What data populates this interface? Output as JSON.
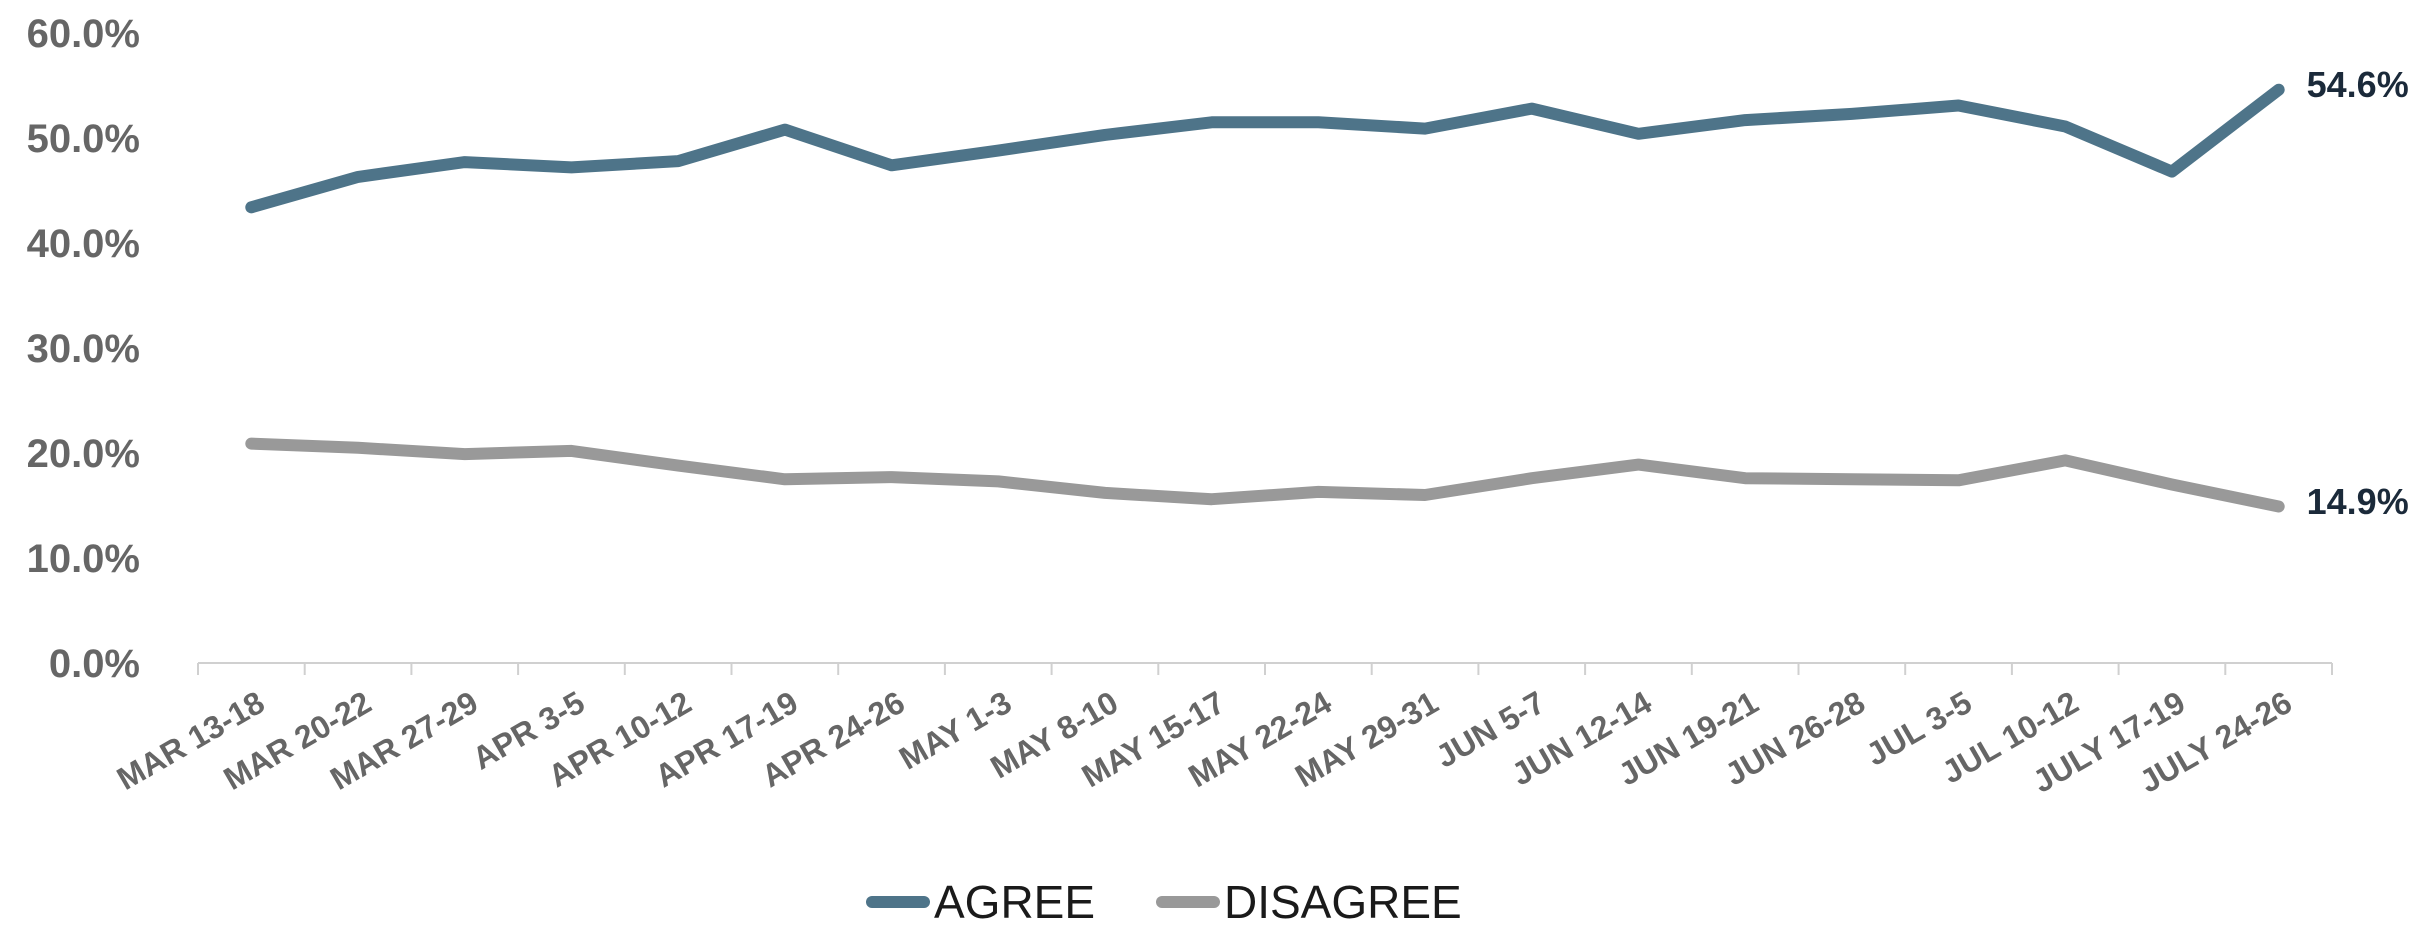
{
  "chart_data": {
    "type": "line",
    "title": "",
    "xlabel": "",
    "ylabel": "",
    "ylim": [
      0,
      60
    ],
    "y_ticks": [
      "0.0%",
      "10.0%",
      "20.0%",
      "30.0%",
      "40.0%",
      "50.0%",
      "60.0%"
    ],
    "grid": false,
    "legend_position": "bottom",
    "x_tick_labels": [
      "MAR 13-18",
      "MAR 20-22",
      "MAR 27-29",
      "APR 3-5",
      "APR 10-12",
      "APR 17-19",
      "APR 24-26",
      "MAY 1-3",
      "MAY 8-10",
      "MAY 15-17",
      "MAY 22-24",
      "MAY 29-31",
      "JUN 5-7",
      "JUN 12-14",
      "JUN 19-21",
      "JUN 26-28",
      "JUL 3-5",
      "JUL 10-12",
      "JULY 17-19",
      "JULY 24-26"
    ],
    "series": [
      {
        "name": "AGREE",
        "color": "#4e7489",
        "values": [
          43.4,
          46.3,
          47.7,
          47.2,
          47.8,
          50.8,
          47.4,
          48.8,
          50.3,
          51.5,
          51.5,
          50.9,
          52.8,
          50.4,
          51.7,
          52.3,
          53.1,
          51.1,
          46.8,
          54.6
        ],
        "end_label": "54.6%"
      },
      {
        "name": "DISAGREE",
        "color": "#999999",
        "values": [
          20.9,
          20.5,
          19.9,
          20.2,
          18.8,
          17.5,
          17.7,
          17.3,
          16.2,
          15.6,
          16.3,
          16.0,
          17.6,
          18.9,
          17.6,
          17.5,
          17.4,
          19.3,
          17.0,
          14.9
        ],
        "end_label": "14.9%"
      }
    ]
  }
}
